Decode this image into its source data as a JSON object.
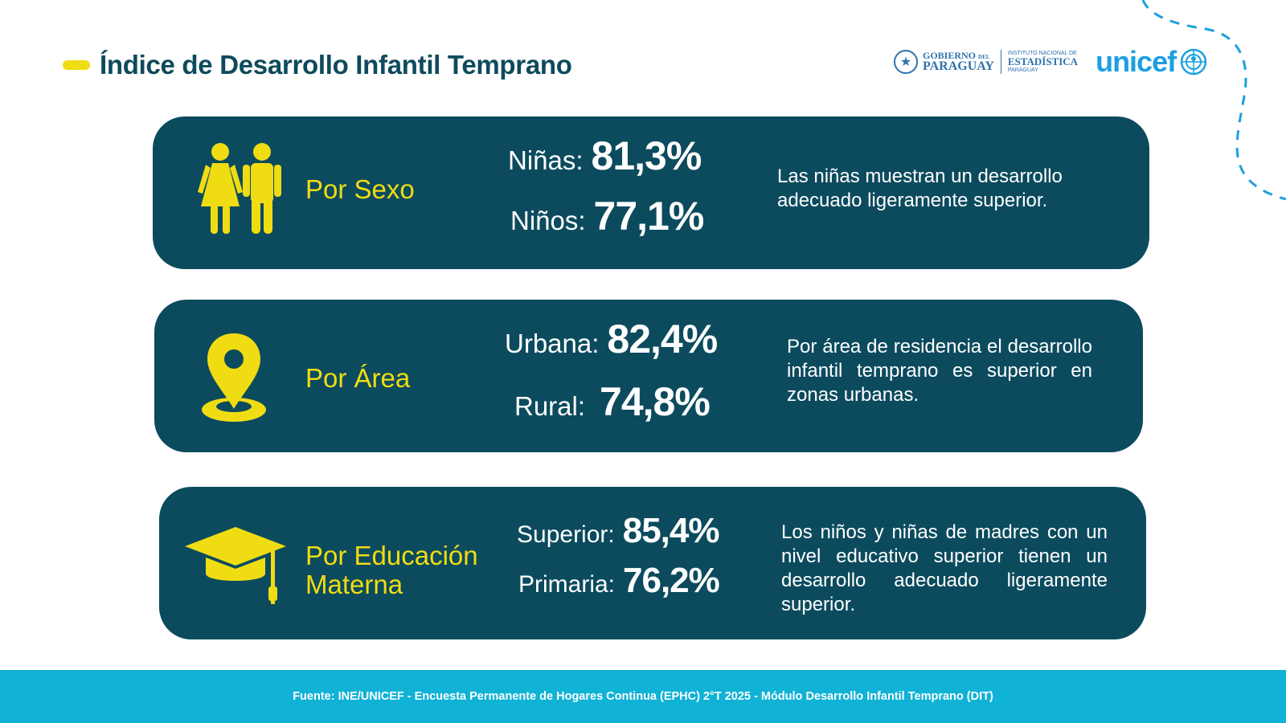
{
  "title": "Índice de Desarrollo Infantil Temprano",
  "logos": {
    "gov_line1": "GOBIERNO",
    "gov_line1_small": "DEL",
    "gov_line2": "PARAGUAY",
    "ine_small_top": "INSTITUTO NACIONAL DE",
    "ine_main": "ESTADÍSTICA",
    "ine_small_bottom": "PARAGUAY",
    "unicef": "unicef"
  },
  "cards": [
    {
      "label": "Por Sexo",
      "icon": "people-icon",
      "stats": [
        {
          "label": "Niñas:",
          "value": "81,3%"
        },
        {
          "label": "Niños:",
          "value": "77,1%"
        }
      ],
      "description": "Las niñas muestran un desarrollo adecuado ligeramente superior."
    },
    {
      "label": "Por Área",
      "icon": "location-pin-icon",
      "stats": [
        {
          "label": "Urbana:",
          "value": "82,4%"
        },
        {
          "label": "Rural:",
          "value": "74,8%"
        }
      ],
      "description": "Por área de residencia el desarrollo infantil temprano es superior en zonas urbanas."
    },
    {
      "label_line1": "Por Educación",
      "label_line2": "Materna",
      "icon": "graduation-cap-icon",
      "stats": [
        {
          "label": "Superior:",
          "value": "85,4%"
        },
        {
          "label": "Primaria:",
          "value": "76,2%"
        }
      ],
      "description": "Los niños y niñas de madres con un nivel educativo superior tienen un desarrollo adecuado ligeramente superior."
    }
  ],
  "footer": "Fuente: INE/UNICEF - Encuesta Permanente de Hogares Continua (EPHC) 2°T 2025 - Módulo Desarrollo Infantil Temprano (DIT)",
  "colors": {
    "card_bg": "#0c4b5e",
    "accent_yellow": "#f0dc12",
    "footer_bg": "#10b2d6",
    "title": "#0d4a5c"
  }
}
